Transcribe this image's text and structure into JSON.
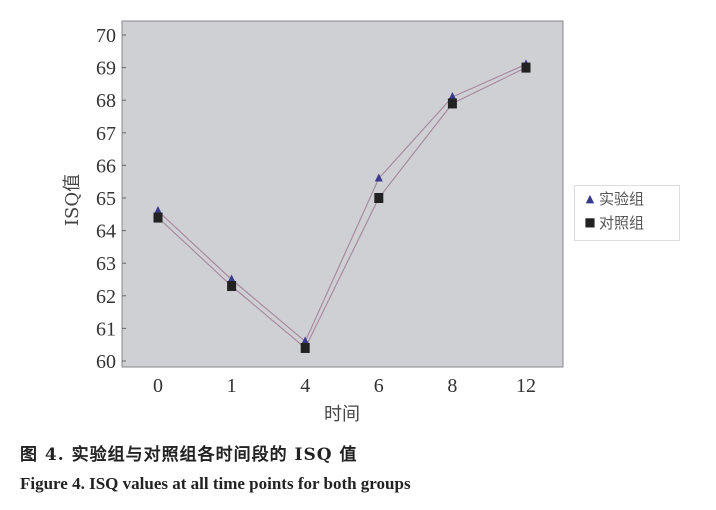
{
  "chart_data": {
    "type": "line",
    "categories": [
      "0",
      "1",
      "4",
      "6",
      "8",
      "12"
    ],
    "xlabel": "时间",
    "ylabel": "ISQ值",
    "ylim": [
      60,
      70
    ],
    "yticks": [
      60,
      61,
      62,
      63,
      64,
      65,
      66,
      67,
      68,
      69,
      70
    ],
    "grid": false,
    "legend_placement": "right",
    "series": [
      {
        "name": "实验组",
        "marker": "triangle",
        "color": "#3a3a8c",
        "values": [
          64.6,
          62.5,
          60.6,
          65.6,
          68.1,
          69.1
        ]
      },
      {
        "name": "对照组",
        "marker": "square",
        "color": "#222222",
        "values": [
          64.4,
          62.3,
          60.4,
          65.0,
          67.9,
          69.0
        ]
      }
    ],
    "line_color": "#a88aa0",
    "plot_background": "#cfd0d4"
  },
  "captions": {
    "cn": "图 4.   实验组与对照组各时间段的 ISQ 值",
    "en": "Figure 4.   ISQ values at all time points for both groups"
  }
}
